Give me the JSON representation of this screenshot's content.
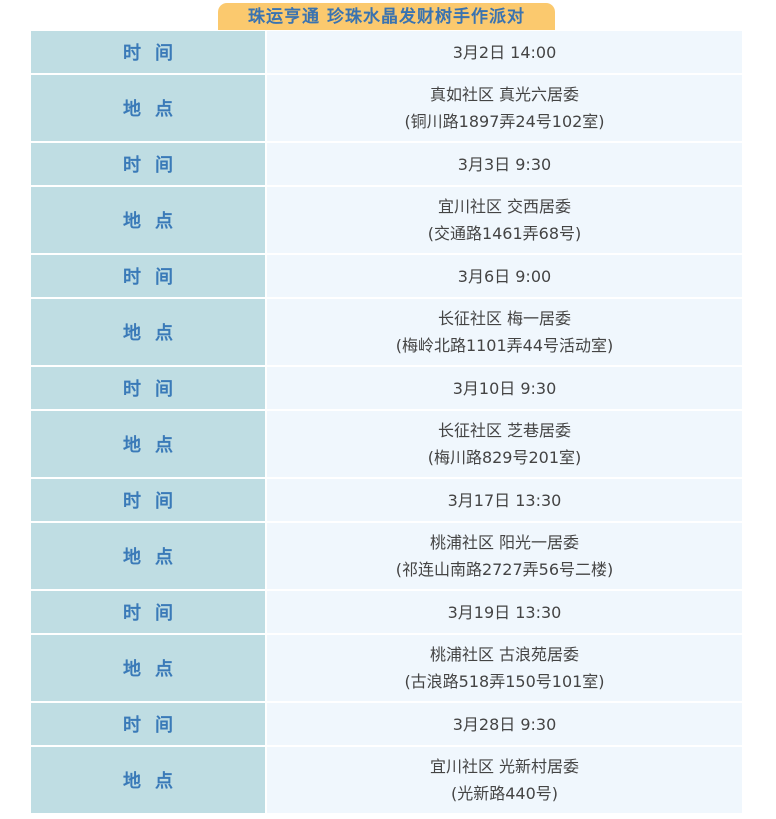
{
  "header": {
    "title": "珠运亨通 珍珠水晶发财树手作派对"
  },
  "labels": {
    "time": "时间",
    "place": "地点"
  },
  "colors": {
    "tab": "#fbc96e",
    "label_bg": "#bfdde3",
    "value_bg": "#f0f7fd",
    "label_text": "#3a7ab8"
  },
  "events": [
    {
      "time": "3月2日 14:00",
      "place": "真如社区 真光六居委",
      "address": "(铜川路1897弄24号102室)"
    },
    {
      "time": "3月3日 9:30",
      "place": "宜川社区 交西居委",
      "address": "(交通路1461弄68号)"
    },
    {
      "time": "3月6日 9:00",
      "place": "长征社区 梅一居委",
      "address": "(梅岭北路1101弄44号活动室)"
    },
    {
      "time": "3月10日 9:30",
      "place": "长征社区 芝巷居委",
      "address": "(梅川路829号201室)"
    },
    {
      "time": "3月17日 13:30",
      "place": "桃浦社区 阳光一居委",
      "address": "(祁连山南路2727弄56号二楼)"
    },
    {
      "time": "3月19日 13:30",
      "place": "桃浦社区 古浪苑居委",
      "address": "(古浪路518弄150号101室)"
    },
    {
      "time": "3月28日 9:30",
      "place": "宜川社区 光新村居委",
      "address": "(光新路440号)"
    }
  ]
}
